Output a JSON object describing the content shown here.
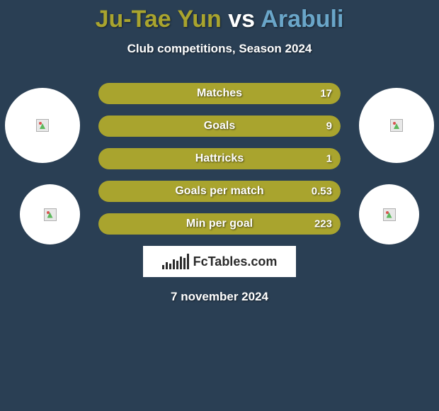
{
  "title": {
    "player1": "Ju-Tae Yun",
    "vs": "vs",
    "player2": "Arabuli"
  },
  "title_colors": {
    "player1": "#a9a42e",
    "vs": "#ffffff",
    "player2": "#6aa6c9"
  },
  "subtitle": "Club competitions, Season 2024",
  "avatars": [
    {
      "pos": "a1",
      "size": "top"
    },
    {
      "pos": "a2",
      "size": "top"
    },
    {
      "pos": "a3",
      "size": "bottom"
    },
    {
      "pos": "a4",
      "size": "bottom"
    }
  ],
  "bar_colors": {
    "left": "#a9a42e",
    "right": "#6aa6c9"
  },
  "bars": [
    {
      "label": "Matches",
      "left_val": "",
      "right_val": "17",
      "left_pct": 0,
      "right_pct": 100
    },
    {
      "label": "Goals",
      "left_val": "",
      "right_val": "9",
      "left_pct": 0,
      "right_pct": 100
    },
    {
      "label": "Hattricks",
      "left_val": "",
      "right_val": "1",
      "left_pct": 0,
      "right_pct": 100
    },
    {
      "label": "Goals per match",
      "left_val": "",
      "right_val": "0.53",
      "left_pct": 0,
      "right_pct": 100
    },
    {
      "label": "Min per goal",
      "left_val": "",
      "right_val": "223",
      "left_pct": 0,
      "right_pct": 100
    }
  ],
  "logo_text": "FcTables.com",
  "logo_bar_heights": [
    6,
    10,
    8,
    14,
    12,
    18,
    16,
    22
  ],
  "date": "7 november 2024",
  "background_color": "#2a3f54"
}
